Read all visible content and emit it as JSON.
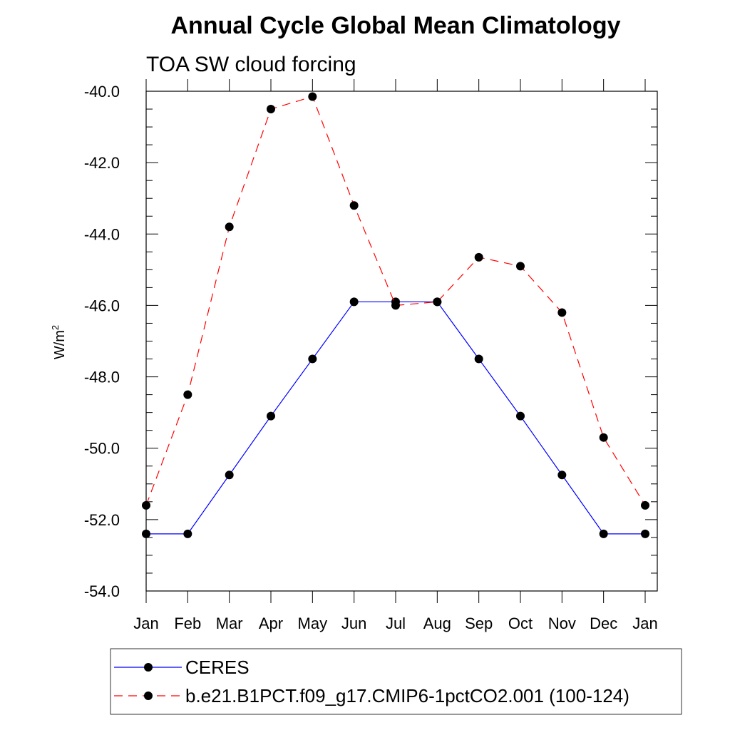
{
  "chart_data": {
    "type": "line",
    "title": "Annual Cycle Global Mean Climatology",
    "subtitle": "TOA SW cloud forcing",
    "ylabel": "W/m",
    "ylabel_superscript": "2",
    "xlabel": "",
    "categories": [
      "Jan",
      "Feb",
      "Mar",
      "Apr",
      "May",
      "Jun",
      "Jul",
      "Aug",
      "Sep",
      "Oct",
      "Nov",
      "Dec",
      "Jan"
    ],
    "ylim": [
      -54.0,
      -40.0
    ],
    "yticks": [
      -54.0,
      -52.0,
      -50.0,
      -48.0,
      -46.0,
      -44.0,
      -42.0,
      -40.0
    ],
    "ytick_labels": [
      "-54.0",
      "-52.0",
      "-50.0",
      "-48.0",
      "-46.0",
      "-44.0",
      "-42.0",
      "-40.0"
    ],
    "series": [
      {
        "name": "CERES",
        "color": "#0000ff",
        "dash": "solid",
        "values": [
          -52.4,
          -52.4,
          -50.75,
          -49.1,
          -47.5,
          -45.9,
          -45.9,
          -45.9,
          -47.5,
          -49.1,
          -50.75,
          -52.4,
          -52.4
        ]
      },
      {
        "name": "b.e21.B1PCT.f09_g17.CMIP6-1pctCO2.001 (100-124)",
        "color": "#ff0000",
        "dash": "dashed",
        "values": [
          -51.6,
          -48.5,
          -43.8,
          -40.5,
          -40.15,
          -43.2,
          -46.0,
          -45.9,
          -44.65,
          -44.9,
          -46.2,
          -49.7,
          -51.6
        ]
      }
    ],
    "legend_placement": "bottom",
    "marker_color": "#000000"
  }
}
